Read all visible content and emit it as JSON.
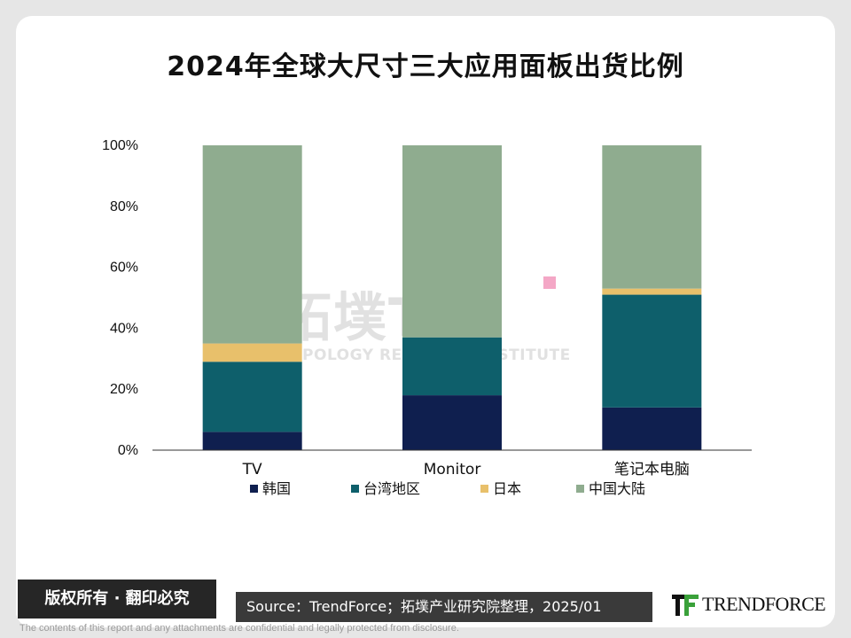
{
  "chart_data": {
    "type": "bar",
    "stacked": true,
    "percent": true,
    "title": "2024年全球大尺寸三大应用面板出货比例",
    "categories": [
      "TV",
      "Monitor",
      "笔记本电脑"
    ],
    "series": [
      {
        "name": "韩国",
        "color": "#0f1f4f",
        "values": [
          6,
          18,
          14
        ]
      },
      {
        "name": "台湾地区",
        "color": "#0e5f6b",
        "values": [
          23,
          19,
          37
        ]
      },
      {
        "name": "日本",
        "color": "#e8c06b",
        "values": [
          6,
          0,
          2
        ]
      },
      {
        "name": "中国大陆",
        "color": "#8fac8f",
        "values": [
          65,
          63,
          47
        ]
      }
    ],
    "ylim": [
      0,
      100
    ],
    "yticks": [
      "0%",
      "20%",
      "40%",
      "60%",
      "80%",
      "100%"
    ],
    "grid": false,
    "legend_position": "bottom"
  },
  "watermark": {
    "main": "拓墣TRI",
    "sub": "TOPOLOGY RESEARCH INSTITUTE"
  },
  "footer": {
    "copyright": "版权所有 · 翻印必究",
    "source": "Source：TrendForce；拓墣产业研究院整理，2025/01",
    "logo_text": "TRENDFORCE",
    "disclaimer": "The contents of this report and any attachments are confidential and legally protected from disclosure."
  }
}
